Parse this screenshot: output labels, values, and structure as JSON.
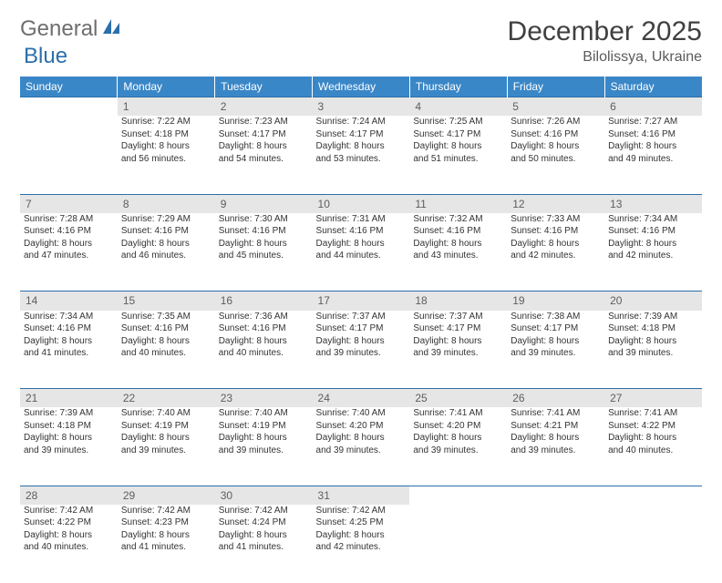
{
  "brand": {
    "part1": "General",
    "part2": "Blue"
  },
  "title": "December 2025",
  "location": "Bilolissya, Ukraine",
  "colors": {
    "header_bg": "#3a87c8",
    "header_text": "#ffffff",
    "daynum_bg": "#e6e6e6",
    "rule": "#2b6fab",
    "text": "#333333",
    "logo_gray": "#6e6e6e",
    "logo_blue": "#2b6fab"
  },
  "weekdays": [
    "Sunday",
    "Monday",
    "Tuesday",
    "Wednesday",
    "Thursday",
    "Friday",
    "Saturday"
  ],
  "weeks": [
    {
      "nums": [
        "",
        "1",
        "2",
        "3",
        "4",
        "5",
        "6"
      ],
      "cells": [
        null,
        {
          "sunrise": "7:22 AM",
          "sunset": "4:18 PM",
          "dl1": "Daylight: 8 hours",
          "dl2": "and 56 minutes."
        },
        {
          "sunrise": "7:23 AM",
          "sunset": "4:17 PM",
          "dl1": "Daylight: 8 hours",
          "dl2": "and 54 minutes."
        },
        {
          "sunrise": "7:24 AM",
          "sunset": "4:17 PM",
          "dl1": "Daylight: 8 hours",
          "dl2": "and 53 minutes."
        },
        {
          "sunrise": "7:25 AM",
          "sunset": "4:17 PM",
          "dl1": "Daylight: 8 hours",
          "dl2": "and 51 minutes."
        },
        {
          "sunrise": "7:26 AM",
          "sunset": "4:16 PM",
          "dl1": "Daylight: 8 hours",
          "dl2": "and 50 minutes."
        },
        {
          "sunrise": "7:27 AM",
          "sunset": "4:16 PM",
          "dl1": "Daylight: 8 hours",
          "dl2": "and 49 minutes."
        }
      ]
    },
    {
      "nums": [
        "7",
        "8",
        "9",
        "10",
        "11",
        "12",
        "13"
      ],
      "cells": [
        {
          "sunrise": "7:28 AM",
          "sunset": "4:16 PM",
          "dl1": "Daylight: 8 hours",
          "dl2": "and 47 minutes."
        },
        {
          "sunrise": "7:29 AM",
          "sunset": "4:16 PM",
          "dl1": "Daylight: 8 hours",
          "dl2": "and 46 minutes."
        },
        {
          "sunrise": "7:30 AM",
          "sunset": "4:16 PM",
          "dl1": "Daylight: 8 hours",
          "dl2": "and 45 minutes."
        },
        {
          "sunrise": "7:31 AM",
          "sunset": "4:16 PM",
          "dl1": "Daylight: 8 hours",
          "dl2": "and 44 minutes."
        },
        {
          "sunrise": "7:32 AM",
          "sunset": "4:16 PM",
          "dl1": "Daylight: 8 hours",
          "dl2": "and 43 minutes."
        },
        {
          "sunrise": "7:33 AM",
          "sunset": "4:16 PM",
          "dl1": "Daylight: 8 hours",
          "dl2": "and 42 minutes."
        },
        {
          "sunrise": "7:34 AM",
          "sunset": "4:16 PM",
          "dl1": "Daylight: 8 hours",
          "dl2": "and 42 minutes."
        }
      ]
    },
    {
      "nums": [
        "14",
        "15",
        "16",
        "17",
        "18",
        "19",
        "20"
      ],
      "cells": [
        {
          "sunrise": "7:34 AM",
          "sunset": "4:16 PM",
          "dl1": "Daylight: 8 hours",
          "dl2": "and 41 minutes."
        },
        {
          "sunrise": "7:35 AM",
          "sunset": "4:16 PM",
          "dl1": "Daylight: 8 hours",
          "dl2": "and 40 minutes."
        },
        {
          "sunrise": "7:36 AM",
          "sunset": "4:16 PM",
          "dl1": "Daylight: 8 hours",
          "dl2": "and 40 minutes."
        },
        {
          "sunrise": "7:37 AM",
          "sunset": "4:17 PM",
          "dl1": "Daylight: 8 hours",
          "dl2": "and 39 minutes."
        },
        {
          "sunrise": "7:37 AM",
          "sunset": "4:17 PM",
          "dl1": "Daylight: 8 hours",
          "dl2": "and 39 minutes."
        },
        {
          "sunrise": "7:38 AM",
          "sunset": "4:17 PM",
          "dl1": "Daylight: 8 hours",
          "dl2": "and 39 minutes."
        },
        {
          "sunrise": "7:39 AM",
          "sunset": "4:18 PM",
          "dl1": "Daylight: 8 hours",
          "dl2": "and 39 minutes."
        }
      ]
    },
    {
      "nums": [
        "21",
        "22",
        "23",
        "24",
        "25",
        "26",
        "27"
      ],
      "cells": [
        {
          "sunrise": "7:39 AM",
          "sunset": "4:18 PM",
          "dl1": "Daylight: 8 hours",
          "dl2": "and 39 minutes."
        },
        {
          "sunrise": "7:40 AM",
          "sunset": "4:19 PM",
          "dl1": "Daylight: 8 hours",
          "dl2": "and 39 minutes."
        },
        {
          "sunrise": "7:40 AM",
          "sunset": "4:19 PM",
          "dl1": "Daylight: 8 hours",
          "dl2": "and 39 minutes."
        },
        {
          "sunrise": "7:40 AM",
          "sunset": "4:20 PM",
          "dl1": "Daylight: 8 hours",
          "dl2": "and 39 minutes."
        },
        {
          "sunrise": "7:41 AM",
          "sunset": "4:20 PM",
          "dl1": "Daylight: 8 hours",
          "dl2": "and 39 minutes."
        },
        {
          "sunrise": "7:41 AM",
          "sunset": "4:21 PM",
          "dl1": "Daylight: 8 hours",
          "dl2": "and 39 minutes."
        },
        {
          "sunrise": "7:41 AM",
          "sunset": "4:22 PM",
          "dl1": "Daylight: 8 hours",
          "dl2": "and 40 minutes."
        }
      ]
    },
    {
      "nums": [
        "28",
        "29",
        "30",
        "31",
        "",
        "",
        ""
      ],
      "cells": [
        {
          "sunrise": "7:42 AM",
          "sunset": "4:22 PM",
          "dl1": "Daylight: 8 hours",
          "dl2": "and 40 minutes."
        },
        {
          "sunrise": "7:42 AM",
          "sunset": "4:23 PM",
          "dl1": "Daylight: 8 hours",
          "dl2": "and 41 minutes."
        },
        {
          "sunrise": "7:42 AM",
          "sunset": "4:24 PM",
          "dl1": "Daylight: 8 hours",
          "dl2": "and 41 minutes."
        },
        {
          "sunrise": "7:42 AM",
          "sunset": "4:25 PM",
          "dl1": "Daylight: 8 hours",
          "dl2": "and 42 minutes."
        },
        null,
        null,
        null
      ]
    }
  ],
  "labels": {
    "sunrise": "Sunrise:",
    "sunset": "Sunset:"
  }
}
